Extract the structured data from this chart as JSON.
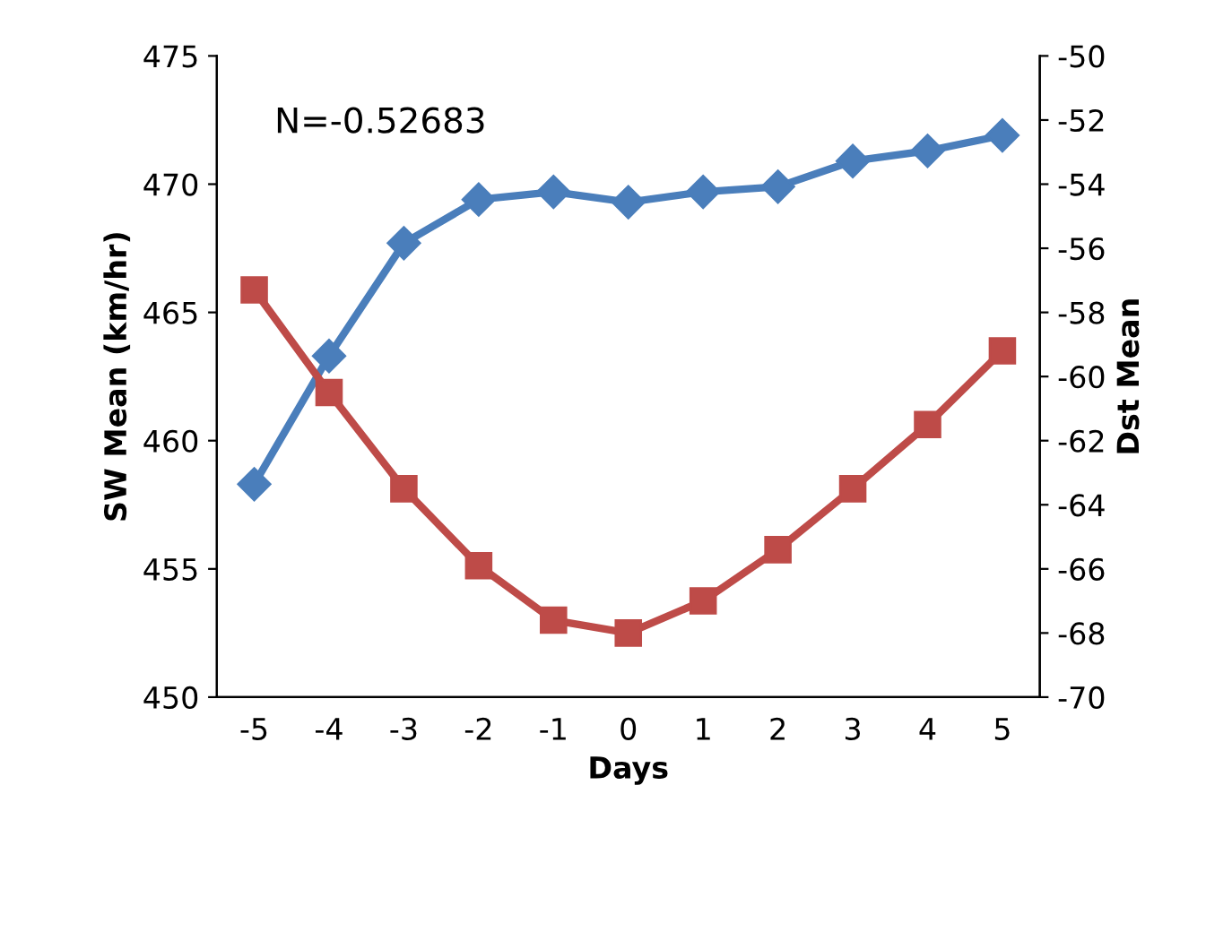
{
  "chart_data": {
    "type": "line",
    "xlabel": "Days",
    "ylabel": "SW Mean (km/hr)",
    "y2label": "Dst Mean",
    "categories": [
      "-5",
      "-4",
      "-3",
      "-2",
      "-1",
      "0",
      "1",
      "2",
      "3",
      "4",
      "5"
    ],
    "series": [
      {
        "color": "#4a7ebb",
        "marker": "diamond",
        "values": [
          458.3,
          463.3,
          467.7,
          469.4,
          469.7,
          469.3,
          469.7,
          469.9,
          470.9,
          471.3,
          471.9
        ]
      },
      {
        "color": "#be4b48",
        "marker": "square",
        "axis": "y2",
        "values": [
          -57.3,
          -60.5,
          -63.5,
          -65.9,
          -67.6,
          -68.0,
          -67.0,
          -65.4,
          -63.5,
          -61.5,
          -59.2
        ]
      }
    ],
    "ylim": [
      450,
      475
    ],
    "yticks": [
      450,
      455,
      460,
      465,
      470,
      475
    ],
    "y2lim": [
      -70,
      -50
    ],
    "y2ticks": [
      -70,
      -68,
      -66,
      -64,
      -62,
      -60,
      -58,
      -56,
      -54,
      -52,
      -50
    ],
    "annotations": [
      "N=-0.52683"
    ],
    "grid": false,
    "legend": false,
    "line_style": "solid"
  }
}
